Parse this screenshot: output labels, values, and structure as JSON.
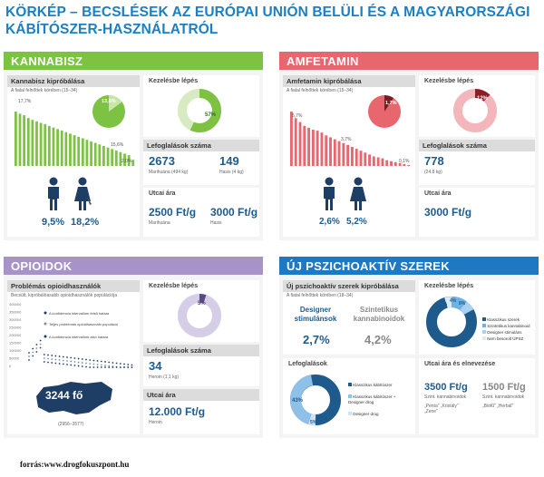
{
  "title": "KÖRKÉP – BECSLÉSEK AZ EURÓPAI UNIÓN BELÜLI ÉS A MAGYARORSZÁGI KÁBÍTÓSZER-HASZNÁLATRÓL",
  "colors": {
    "cannabis": "#7dc242",
    "amphet": "#e8676f",
    "opioid": "#a793c7",
    "nps": "#1e78c2",
    "blue": "#1e5b8c"
  },
  "cannabis": {
    "header": "KANNABISZ",
    "trial_title": "Kannabisz kipróbálása",
    "trial_sub": "A fiatal felnőttek körében (15–34)",
    "pie_label": "13,6%",
    "bar_label_top": "17,7%",
    "bar_label_mid": "15,6%",
    "bar_label_end": "2,0%",
    "bars": [
      17.7,
      17,
      16.5,
      15.6,
      15,
      14.5,
      14,
      13.6,
      13,
      12.5,
      12,
      11.5,
      11,
      10.5,
      10,
      9.5,
      9,
      8.5,
      8,
      7.5,
      7,
      6.5,
      6,
      5.5,
      5,
      4.5,
      4,
      3.5,
      2.0
    ],
    "male_pct": "9,5%",
    "female_pct": "18,2%",
    "treat_title": "Kezelésbe lépés",
    "treat_pct": "57%",
    "treat_value": 0.57,
    "seiz_title": "Lefoglalások száma",
    "seiz1_value": "2673",
    "seiz1_sub": "Marihuána (494 kg)",
    "seiz2_value": "149",
    "seiz2_sub": "Hasis (4 kg)",
    "price_title": "Utcai ára",
    "price1": "2500 Ft/g",
    "price1_sub": "Marihuána",
    "price2": "3000 Ft/g",
    "price2_sub": "Hasis"
  },
  "amphet": {
    "header": "AMFETAMIN",
    "trial_title": "Amfetamin kipróbálása",
    "trial_sub": "A fiatal felnőttek körében (15–34)",
    "pie_label": "1,7%",
    "bar_label_top": "5,7%",
    "bar_label_mid": "3,7%",
    "bar_label_end": "0,1%",
    "bars": [
      5.7,
      5,
      4.6,
      4.2,
      4,
      3.8,
      3.7,
      3.5,
      3.2,
      3,
      2.8,
      2.6,
      2.4,
      2.2,
      2,
      1.8,
      1.6,
      1.4,
      1.2,
      1,
      0.9,
      0.8,
      0.6,
      0.5,
      0.4,
      0.3,
      0.2,
      0.1
    ],
    "male_pct": "2,6%",
    "female_pct": "5,2%",
    "treat_title": "Kezelésbe lépés",
    "treat_pct": "12%",
    "treat_value": 0.12,
    "seiz_title": "Lefoglalások száma",
    "seiz1_value": "778",
    "seiz1_sub": "(24,8 kg)",
    "price_title": "Utcai ára",
    "price1": "3000 Ft/g"
  },
  "opioid": {
    "header": "OPIOIDOK",
    "users_title": "Problémás opioidhasználók",
    "users_sub": "Becsült, kipróbálóasabb opioidhasználók populációja",
    "legend": [
      "A konfidencia intervallum felső határa",
      "Teljes problémás opioidhasználó populáció",
      "A konfidencia intervallum alsó határa"
    ],
    "yticks": [
      "400000",
      "350000",
      "300000",
      "250000",
      "200000",
      "150000",
      "100000",
      "50000",
      "0"
    ],
    "hu_value": "3244 fő",
    "hu_sub": "(2956–3577)",
    "treat_title": "Kezelésbe lépés",
    "treat_pct": "5%",
    "treat_value": 0.05,
    "seiz_title": "Lefoglalások száma",
    "seiz_value": "34",
    "seiz_sub": "Heroin (1,1 kg)",
    "price_title": "Utcai ára",
    "price": "12.000 Ft/g",
    "price_sub": "Heroin"
  },
  "nps": {
    "header": "ÚJ PSZICHOAKTÍV SZEREK",
    "trial_title": "Új pszichoaktív szerek kipróbálása",
    "trial_sub": "A fiatal felnőttek körében (18–34)",
    "designer_label": "Designer stimulánsok",
    "designer_pct": "2,7%",
    "synth_label": "Szintetikus kannabinoidok",
    "synth_pct": "4,2%",
    "treat_title": "Kezelésbe lépés",
    "treat_labels": [
      "5%",
      "4%",
      "8%"
    ],
    "treat_legend": [
      "Klasszikus szerek",
      "Szintetikus kannabinoid",
      "Designer stimuláns",
      "Nem besorolt ÚPSZ"
    ],
    "seiz_title": "Lefoglalások",
    "seiz_pct1": "43%",
    "seiz_pct2": "5%",
    "seiz_legend": [
      "Klasszikus kábítószer",
      "Klasszikus kábítószer + Designer drog",
      "Designer drog"
    ],
    "price_title": "Utcai ára és elnevezése",
    "price1": "3500 Ft/g",
    "price1_sub": "Szint. kannabinoidok",
    "price1_names": "„Penta” „Kristály” „Zene”",
    "price2": "1500 Ft/g",
    "price2_sub": "Szint. kannabinoidok",
    "price2_names": "„Biofű” „Herbál”"
  },
  "footer": "forrás:www.drogfokuszpont.hu"
}
